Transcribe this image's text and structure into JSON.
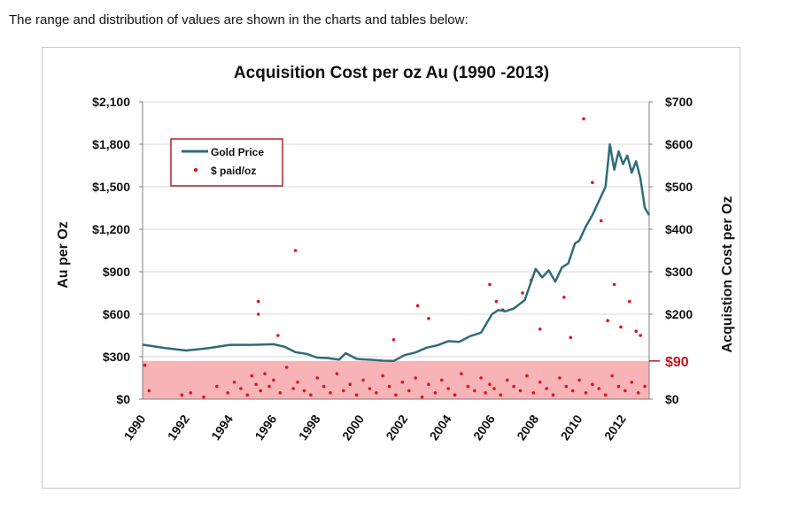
{
  "intro_text": "The range and distribution of values are shown in the charts and tables below:",
  "chart_data": {
    "type": "line",
    "title": "Acquisition Cost per oz Au (1990 -2013)",
    "ylabel": "Au per Oz",
    "y2label": "Acquistion Cost per Oz",
    "ylim": [
      0,
      2100
    ],
    "y2lim": [
      0,
      700
    ],
    "xlim": [
      1990,
      2013.2
    ],
    "y_ticks": [
      "$0",
      "$300",
      "$600",
      "$900",
      "$1,200",
      "$1,500",
      "$1,800",
      "$2,100"
    ],
    "y_tick_values": [
      0,
      300,
      600,
      900,
      1200,
      1500,
      1800,
      2100
    ],
    "y2_ticks": [
      "$0",
      "$100",
      "$200",
      "$300",
      "$400",
      "$500",
      "$600",
      "$700"
    ],
    "y2_tick_values": [
      0,
      100,
      200,
      300,
      400,
      500,
      600,
      700
    ],
    "y2_extra_tick": {
      "label": "$90",
      "value": 90,
      "color": "#c0141c"
    },
    "x_ticks": [
      "1990",
      "1992",
      "1994",
      "1996",
      "1998",
      "2000",
      "2002",
      "2004",
      "2006",
      "2008",
      "2010",
      "2012"
    ],
    "x_tick_values": [
      1990,
      1992,
      1994,
      1996,
      1998,
      2000,
      2002,
      2004,
      2006,
      2008,
      2010,
      2012
    ],
    "legend": {
      "position": "top-left",
      "entries": [
        "Gold Price",
        "$ paid/oz"
      ]
    },
    "band": {
      "from": 0,
      "to": 90,
      "axis": "y2",
      "color": "#f7b3b5"
    },
    "colors": {
      "gold_line": "#2f6b7a",
      "dots": "#e0141e",
      "band": "#f7b3b5",
      "legend_border": "#b0202a",
      "axis": "#7f7f7f",
      "grid": "#d9d9d9"
    },
    "series": [
      {
        "name": "Gold Price",
        "axis": "y",
        "kind": "line",
        "x": [
          1990,
          1991,
          1992,
          1993,
          1994,
          1995,
          1996,
          1996.5,
          1997,
          1997.5,
          1998,
          1998.5,
          1999,
          1999.3,
          1999.8,
          2000,
          2000.5,
          2001,
          2001.5,
          2002,
          2002.5,
          2003,
          2003.5,
          2004,
          2004.5,
          2005,
          2005.5,
          2006,
          2006.3,
          2006.6,
          2007,
          2007.5,
          2008,
          2008.3,
          2008.6,
          2008.9,
          2009.2,
          2009.5,
          2009.8,
          2010,
          2010.3,
          2010.6,
          2010.9,
          2011.2,
          2011.4,
          2011.6,
          2011.8,
          2012,
          2012.2,
          2012.4,
          2012.6,
          2012.8,
          2013,
          2013.2
        ],
        "values": [
          385,
          362,
          344,
          360,
          384,
          384,
          388,
          370,
          332,
          320,
          294,
          290,
          279,
          325,
          285,
          282,
          278,
          272,
          270,
          311,
          330,
          364,
          380,
          410,
          405,
          445,
          470,
          600,
          630,
          620,
          640,
          700,
          920,
          860,
          910,
          830,
          930,
          960,
          1100,
          1120,
          1220,
          1300,
          1400,
          1500,
          1800,
          1620,
          1750,
          1660,
          1720,
          1600,
          1680,
          1560,
          1350,
          1300
        ]
      },
      {
        "name": "$ paid/oz",
        "axis": "y2",
        "kind": "scatter",
        "x": [
          1990.1,
          1990.3,
          1991.8,
          1992.2,
          1992.8,
          1993.4,
          1993.9,
          1994.2,
          1994.5,
          1994.8,
          1995.0,
          1995.2,
          1995.4,
          1995.6,
          1995.8,
          1996.0,
          1996.3,
          1996.6,
          1996.9,
          1997.1,
          1997.4,
          1997.7,
          1998.0,
          1998.3,
          1998.6,
          1998.9,
          1999.2,
          1999.5,
          1999.8,
          2000.1,
          2000.4,
          2000.7,
          2001.0,
          2001.3,
          2001.6,
          2001.9,
          2002.2,
          2002.5,
          2002.8,
          2003.1,
          2003.4,
          2003.7,
          2004.0,
          2004.3,
          2004.6,
          2004.9,
          2005.2,
          2005.5,
          2005.7,
          2005.9,
          2006.1,
          2006.4,
          2006.7,
          2007.0,
          2007.3,
          2007.6,
          2007.9,
          2008.2,
          2008.5,
          2008.8,
          2009.1,
          2009.4,
          2009.7,
          2010.0,
          2010.3,
          2010.6,
          2010.9,
          2011.2,
          2011.5,
          2011.8,
          2012.1,
          2012.4,
          2012.7,
          2013.0,
          1995.3,
          1997.0,
          1996.2,
          2001.5,
          2003.1,
          2005.9,
          2006.2,
          2007.4,
          2007.8,
          2009.3,
          2010.2,
          2010.6,
          2011.0,
          2011.6,
          2012.3,
          2012.8,
          1995.3,
          2002.6,
          2006.5,
          2008.2,
          2009.6,
          2011.3,
          2011.9,
          2012.6
        ],
        "values": [
          80,
          20,
          10,
          15,
          5,
          30,
          15,
          40,
          25,
          10,
          55,
          35,
          20,
          60,
          30,
          45,
          15,
          75,
          25,
          40,
          20,
          10,
          50,
          30,
          15,
          60,
          20,
          35,
          10,
          45,
          25,
          15,
          55,
          30,
          10,
          40,
          20,
          50,
          5,
          35,
          15,
          45,
          25,
          10,
          60,
          30,
          20,
          50,
          15,
          35,
          25,
          10,
          45,
          30,
          20,
          55,
          15,
          40,
          25,
          10,
          50,
          30,
          20,
          45,
          15,
          35,
          25,
          10,
          55,
          30,
          20,
          40,
          15,
          30,
          230,
          350,
          150,
          140,
          190,
          270,
          230,
          250,
          280,
          240,
          660,
          510,
          420,
          270,
          230,
          150,
          200,
          220,
          210,
          165,
          145,
          185,
          170,
          160
        ]
      }
    ]
  }
}
